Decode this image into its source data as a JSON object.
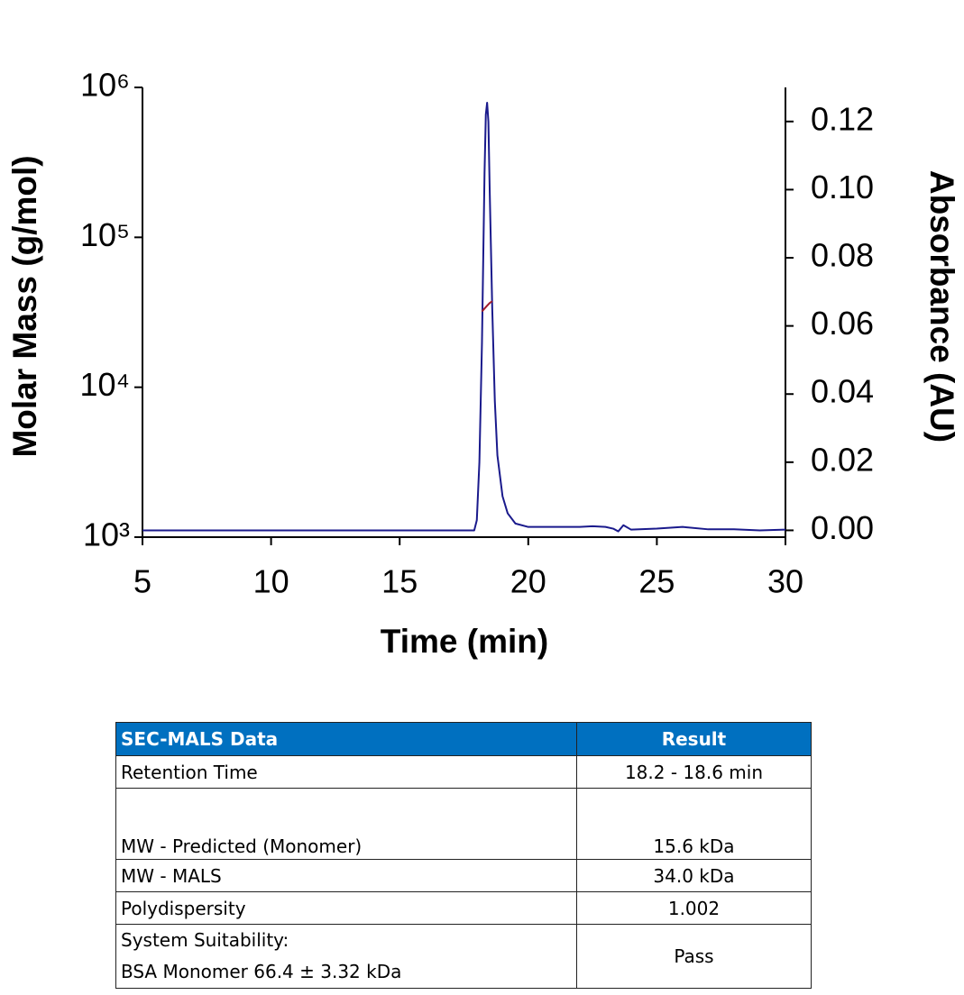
{
  "chart_data": {
    "type": "line",
    "xlabel": "Time (min)",
    "ylabel": "Molar Mass (g/mol)",
    "y2label": "Absorbance (AU)",
    "xlim": [
      5,
      30
    ],
    "xticks": [
      5,
      10,
      15,
      20,
      25,
      30
    ],
    "ylim": [
      1000,
      1000000
    ],
    "ylog": true,
    "yticks": [
      {
        "value": 1000,
        "label": "10³"
      },
      {
        "value": 10000,
        "label": "10⁴"
      },
      {
        "value": 100000,
        "label": "10⁵"
      },
      {
        "value": 1000000,
        "label": "10⁶"
      }
    ],
    "y2lim": [
      -0.002,
      0.13
    ],
    "y2ticks": [
      {
        "value": 0,
        "label": "0.00"
      },
      {
        "value": 0.02,
        "label": "0.02"
      },
      {
        "value": 0.04,
        "label": "0.04"
      },
      {
        "value": 0.06,
        "label": "0.06"
      },
      {
        "value": 0.08,
        "label": "0.08"
      },
      {
        "value": 0.1,
        "label": "0.10"
      },
      {
        "value": 0.12,
        "label": "0.12"
      }
    ],
    "series": [
      {
        "name": "Absorbance",
        "color": "#1a1a8c",
        "axis": "y2",
        "x": [
          5,
          17.9,
          18.0,
          18.1,
          18.2,
          18.3,
          18.35,
          18.4,
          18.45,
          18.5,
          18.6,
          18.7,
          18.8,
          19.0,
          19.2,
          19.5,
          20,
          22,
          22.5,
          23,
          23.3,
          23.5,
          23.7,
          24,
          25,
          26,
          27,
          28,
          29,
          30
        ],
        "values": [
          0,
          0,
          0.003,
          0.02,
          0.055,
          0.105,
          0.122,
          0.1255,
          0.12,
          0.1,
          0.065,
          0.038,
          0.022,
          0.01,
          0.005,
          0.002,
          0.001,
          0.001,
          0.0012,
          0.001,
          0.0005,
          -0.0003,
          0.0015,
          0.0002,
          0.0005,
          0.001,
          0.0003,
          0.0003,
          0,
          0.0002
        ]
      },
      {
        "name": "Molar Mass",
        "color": "#a01c2c",
        "x": [
          18.2,
          18.3,
          18.4,
          18.5,
          18.6
        ],
        "values": [
          32000,
          33500,
          35000,
          36500,
          37500
        ]
      }
    ]
  },
  "table": {
    "header": [
      "SEC-MALS Data",
      "Result"
    ],
    "rows": [
      [
        "Retention Time",
        "18.2 - 18.6 min"
      ],
      [
        "MW - Predicted (Monomer)",
        "15.6 kDa"
      ],
      [
        "MW - MALS",
        "34.0 kDa"
      ],
      [
        "Polydispersity",
        "1.002"
      ],
      [
        [
          "System Suitability:",
          "BSA Monomer 66.4 ± 3.32 kDa"
        ],
        "Pass"
      ]
    ]
  }
}
